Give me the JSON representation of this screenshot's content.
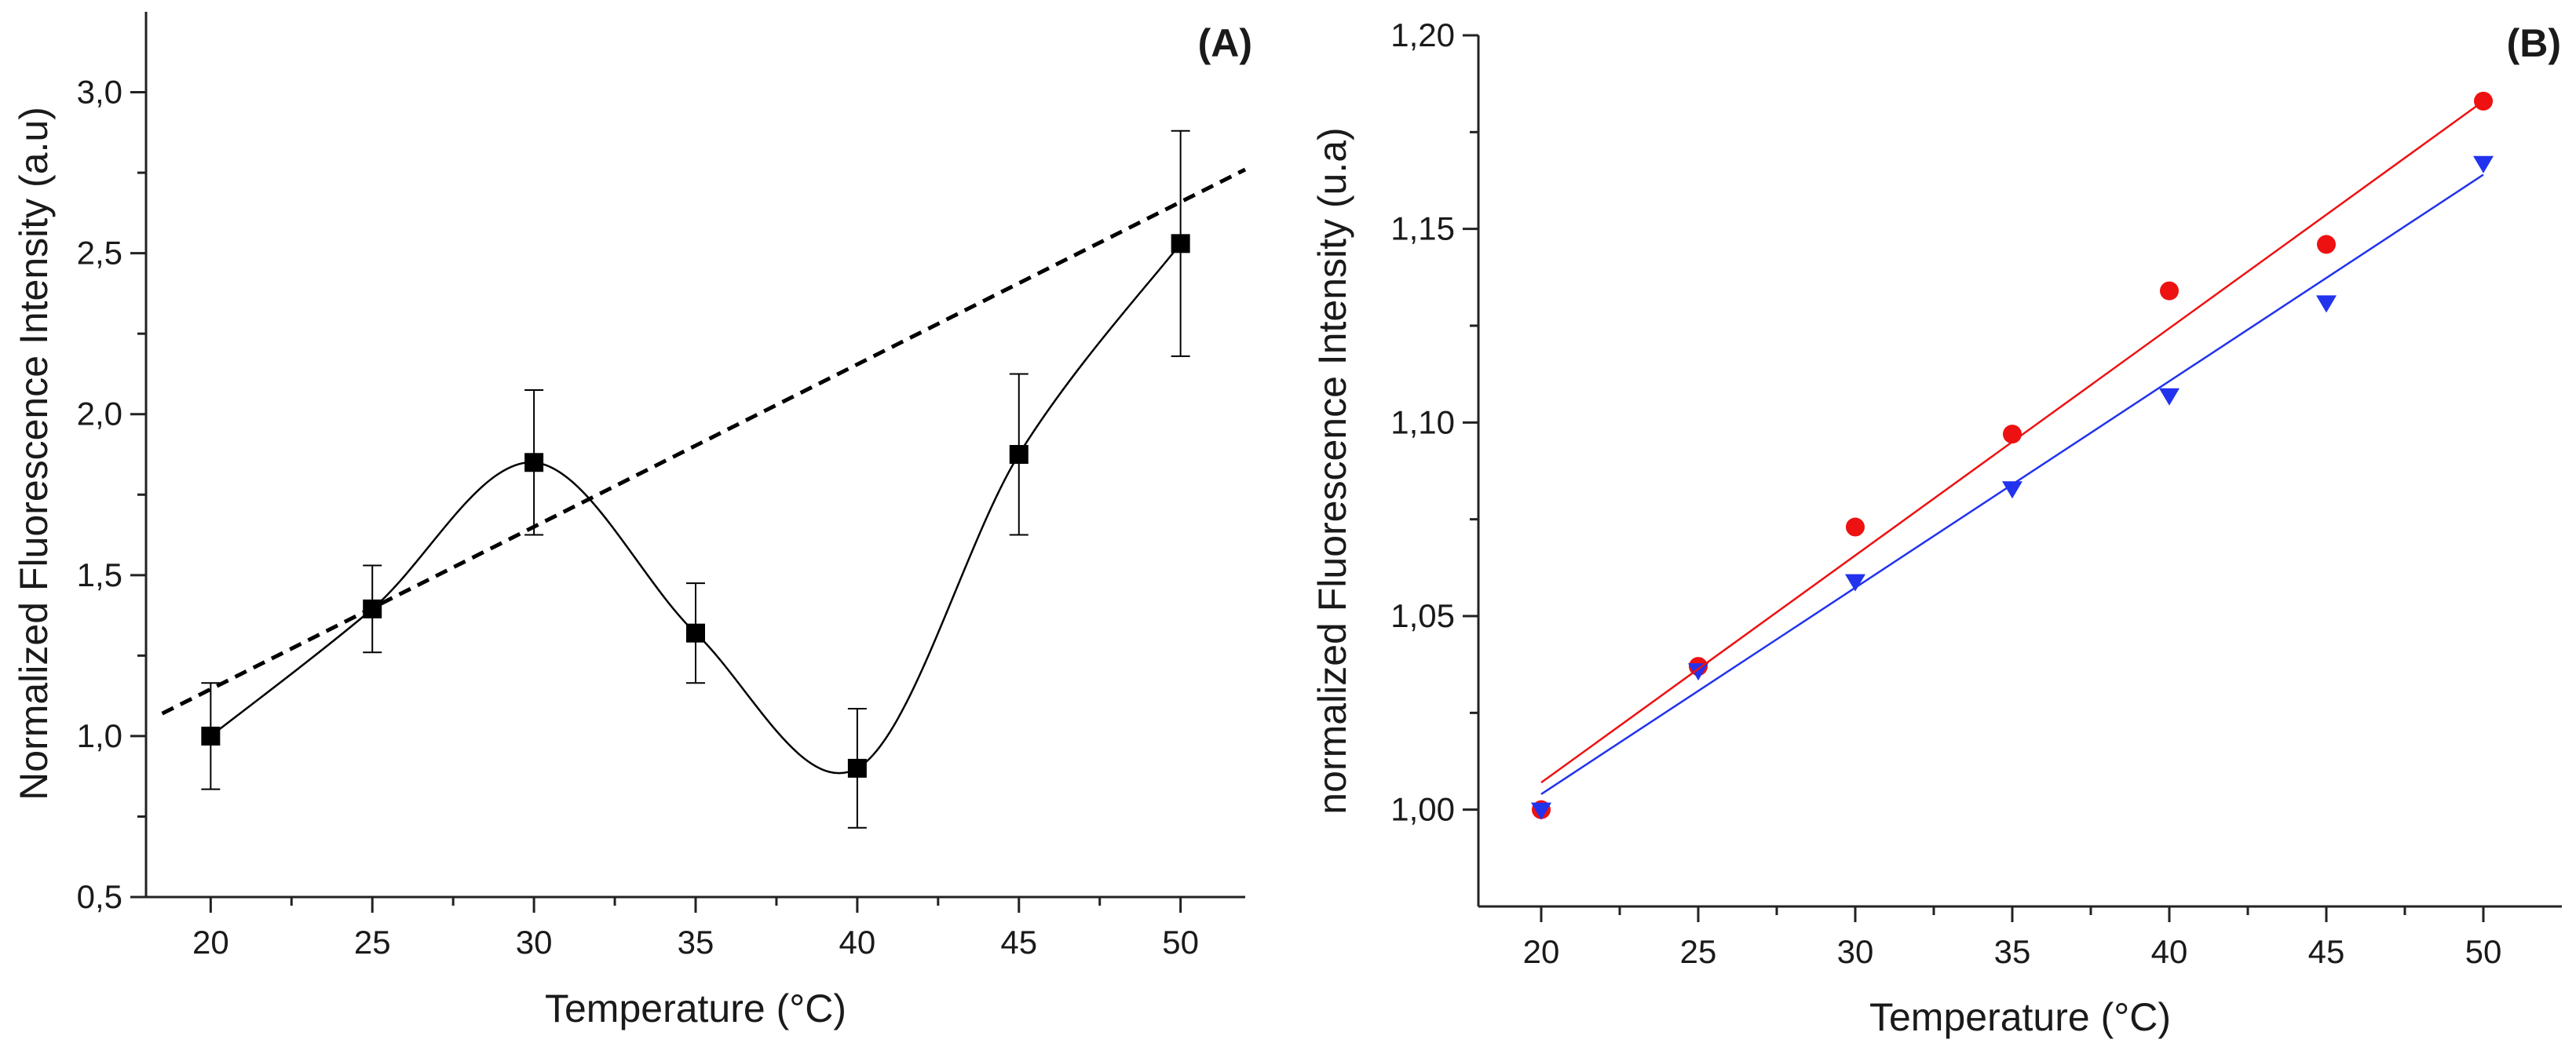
{
  "chart_data": [
    {
      "type": "scatter",
      "panel_label": "(A)",
      "xlabel": "Temperature (°C)",
      "ylabel": "Normalized Fluorescence Intensity (a.u)",
      "xlim": [
        18,
        52
      ],
      "ylim": [
        0.5,
        3.25
      ],
      "x_ticks": [
        20,
        25,
        30,
        35,
        40,
        45,
        50
      ],
      "y_ticks": [
        0.5,
        1.0,
        1.5,
        2.0,
        2.5,
        3.0
      ],
      "x_tick_labels": [
        "20",
        "25",
        "30",
        "35",
        "40",
        "45",
        "50"
      ],
      "y_tick_labels": [
        "0,5",
        "1,0",
        "1,5",
        "2,0",
        "2,5",
        "3,0"
      ],
      "grid": false,
      "series": [
        {
          "name": "data",
          "marker": "square",
          "color": "#000000",
          "x": [
            20,
            25,
            30,
            35,
            40,
            45,
            50
          ],
          "y": [
            1.0,
            1.395,
            1.85,
            1.32,
            0.9,
            1.875,
            2.53
          ],
          "error": [
            0.165,
            0.135,
            0.225,
            0.155,
            0.185,
            0.25,
            0.35
          ],
          "smooth_line": true
        },
        {
          "name": "linear trend",
          "style": "dashed",
          "color": "#000000",
          "x": [
            18.5,
            52
          ],
          "y": [
            1.07,
            2.76
          ]
        }
      ]
    },
    {
      "type": "scatter",
      "panel_label": "(B)",
      "xlabel": "Temperature (°C)",
      "ylabel": "normalized Fluorescence Intensity (u.a)",
      "xlim": [
        18,
        52.5
      ],
      "ylim": [
        0.975,
        1.2
      ],
      "x_ticks": [
        20,
        25,
        30,
        35,
        40,
        45,
        50
      ],
      "y_ticks": [
        1.0,
        1.05,
        1.1,
        1.15,
        1.2
      ],
      "x_tick_labels": [
        "20",
        "25",
        "30",
        "35",
        "40",
        "45",
        "50"
      ],
      "y_tick_labels": [
        "1,00",
        "1,05",
        "1,10",
        "1,15",
        "1,20"
      ],
      "grid": false,
      "series": [
        {
          "name": "red circles",
          "marker": "circle",
          "color": "#ee1111",
          "x": [
            20,
            25,
            30,
            35,
            40,
            45,
            50
          ],
          "y": [
            1.0,
            1.037,
            1.073,
            1.097,
            1.134,
            1.146,
            1.183
          ]
        },
        {
          "name": "blue triangles",
          "marker": "triangle-down",
          "color": "#2233ee",
          "x": [
            20,
            25,
            30,
            35,
            40,
            45,
            50
          ],
          "y": [
            1.0,
            1.036,
            1.059,
            1.083,
            1.107,
            1.131,
            1.167
          ]
        },
        {
          "name": "red fit",
          "style": "line",
          "color": "#ee1111",
          "x": [
            20,
            50
          ],
          "y": [
            1.007,
            1.183
          ]
        },
        {
          "name": "blue fit",
          "style": "line",
          "color": "#2233ee",
          "x": [
            20,
            50
          ],
          "y": [
            1.004,
            1.164
          ]
        }
      ]
    }
  ]
}
